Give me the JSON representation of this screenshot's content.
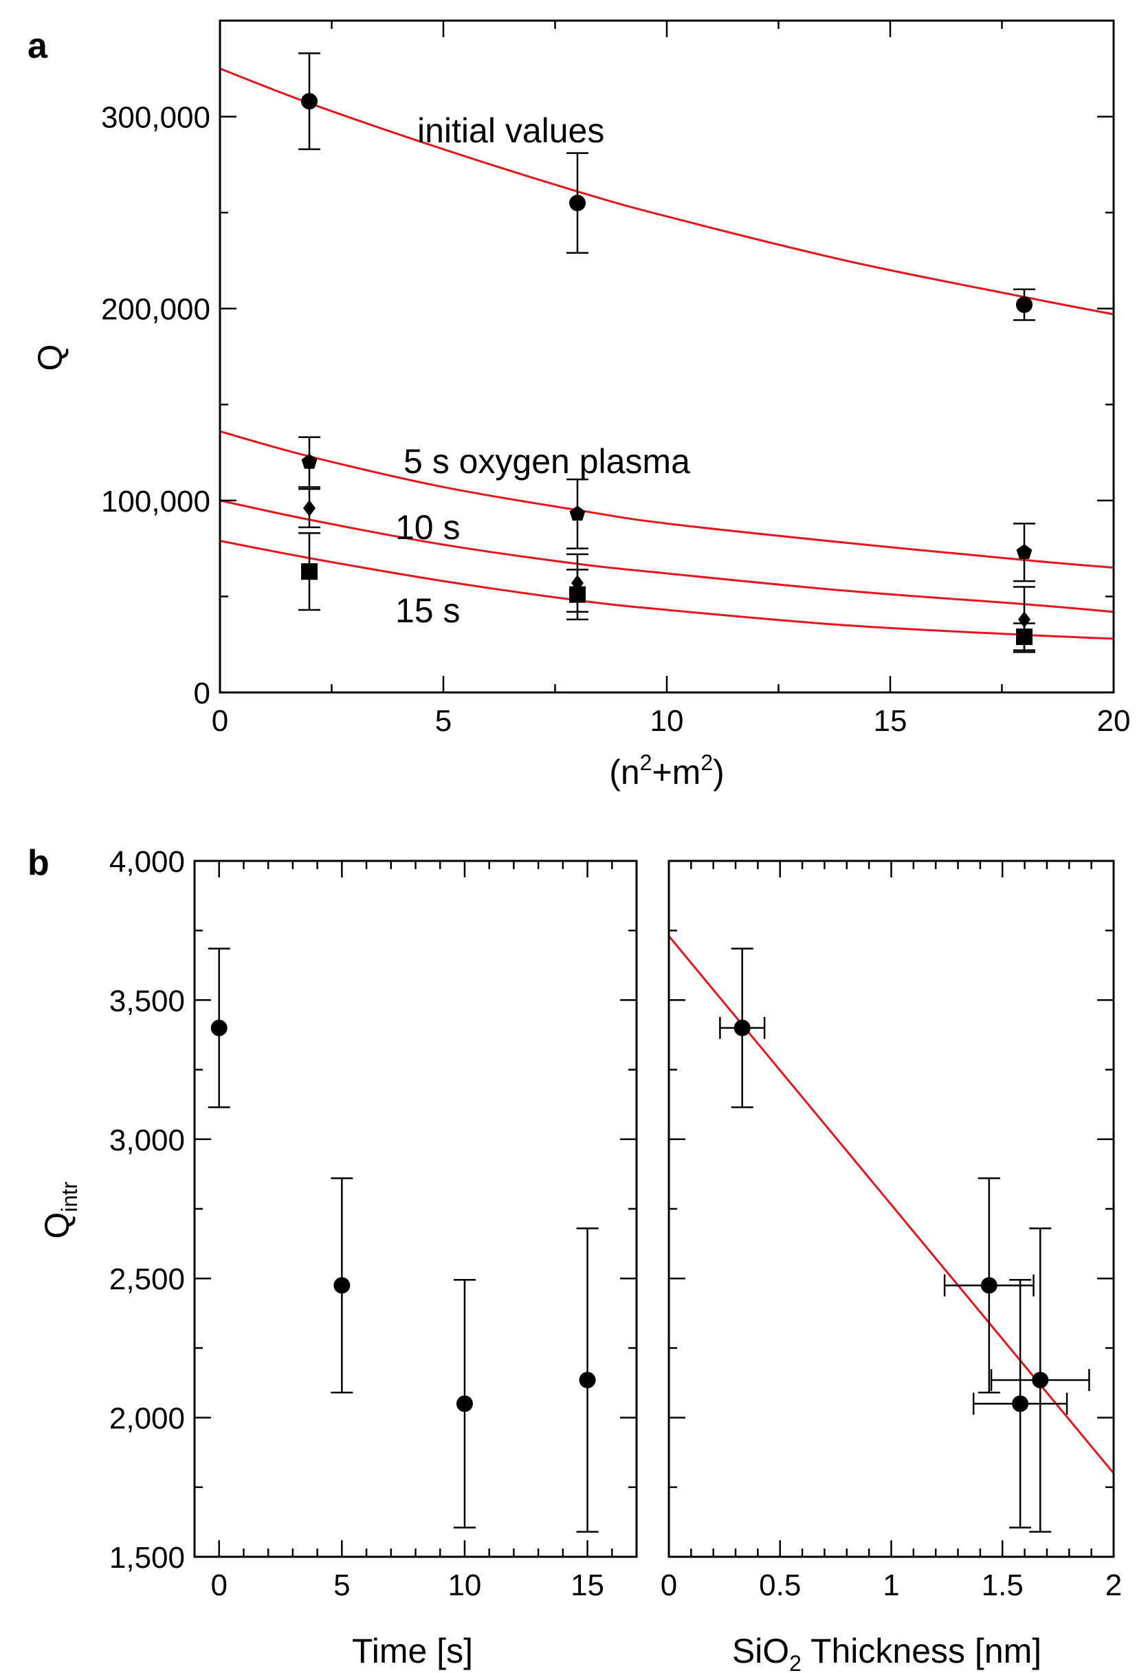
{
  "chart_data": [
    {
      "panel": "a",
      "type": "scatter",
      "xlabel": "(n²+m²)",
      "xlabel_parts": {
        "pre": "(n",
        "sup1": "2",
        "mid": "+m",
        "sup2": "2",
        "post": ")"
      },
      "ylabel": "Q",
      "xlim": [
        0,
        20
      ],
      "ylim": [
        0,
        350000
      ],
      "xticks": [
        0,
        5,
        10,
        15,
        20
      ],
      "xtick_labels": [
        "0",
        "5",
        "10",
        "15",
        "20"
      ],
      "yticks": [
        0,
        100000,
        200000,
        300000
      ],
      "ytick_labels": [
        "0",
        "100,000",
        "200,000",
        "300,000"
      ],
      "series": [
        {
          "name": "initial values",
          "marker": "circle",
          "x": [
            2,
            8,
            18
          ],
          "y": [
            308000,
            255000,
            202000
          ],
          "yerr": [
            25000,
            26000,
            8000
          ],
          "fit": {
            "type": "curve",
            "x": [
              0,
              2,
              5,
              8,
              10,
              14,
              18,
              20
            ],
            "y": [
              325000,
              307000,
              283000,
              261000,
              248000,
              225000,
              206000,
              197000
            ]
          }
        },
        {
          "name": "5 s oxygen plasma",
          "marker": "pentagon",
          "x": [
            2,
            8,
            18
          ],
          "y": [
            120000,
            93000,
            73000
          ],
          "yerr": [
            13000,
            18000,
            15000
          ],
          "fit": {
            "type": "curve",
            "x": [
              0,
              2,
              5,
              8,
              10,
              14,
              18,
              20
            ],
            "y": [
              136000,
              123000,
              107000,
              95000,
              88000,
              78000,
              69000,
              65000
            ]
          }
        },
        {
          "name": "10 s",
          "marker": "diamond",
          "x": [
            2,
            8,
            18
          ],
          "y": [
            96000,
            57000,
            38000
          ],
          "yerr": [
            10000,
            15000,
            17000
          ],
          "fit": {
            "type": "curve",
            "x": [
              0,
              2,
              5,
              8,
              10,
              14,
              18,
              20
            ],
            "y": [
              100000,
              90000,
              77000,
              67000,
              62000,
              53000,
              46000,
              42000
            ]
          }
        },
        {
          "name": "15 s",
          "marker": "square",
          "x": [
            2,
            8,
            18
          ],
          "y": [
            63000,
            51000,
            29000
          ],
          "yerr": [
            20000,
            13000,
            7000
          ],
          "fit": {
            "type": "curve",
            "x": [
              0,
              2,
              5,
              8,
              10,
              14,
              18,
              20
            ],
            "y": [
              79000,
              70000,
              58000,
              48000,
              43000,
              35000,
              30000,
              28000
            ]
          }
        }
      ],
      "annotations": [
        "initial values",
        "5 s oxygen plasma",
        "10 s",
        "15 s"
      ]
    },
    {
      "panel": "b",
      "type": "scatter",
      "xlabel": "Time [s]",
      "ylabel": "Qintr",
      "ylabel_parts": {
        "main": "Q",
        "sub": "intr"
      },
      "xlim": [
        -1,
        17
      ],
      "ylim": [
        1500,
        4000
      ],
      "xticks": [
        0,
        5,
        10,
        15
      ],
      "xtick_labels": [
        "0",
        "5",
        "10",
        "15"
      ],
      "yticks": [
        1500,
        2000,
        2500,
        3000,
        3500,
        4000
      ],
      "ytick_labels": [
        "1,500",
        "2,000",
        "2,500",
        "3,000",
        "3,500",
        "4,000"
      ],
      "series": [
        {
          "name": "Qintr vs time",
          "marker": "circle",
          "x": [
            0,
            5,
            10,
            15
          ],
          "y": [
            3400,
            2475,
            2050,
            2135
          ],
          "yerr": [
            285,
            385,
            445,
            545
          ]
        }
      ]
    },
    {
      "panel": "b-right",
      "type": "scatter",
      "xlabel": "SiO2 Thickness [nm]",
      "xlabel_parts": {
        "pre": "SiO",
        "sub": "2",
        "post": " Thickness [nm]"
      },
      "xlim": [
        0,
        2
      ],
      "ylim": [
        1500,
        4000
      ],
      "xticks": [
        0,
        0.5,
        1,
        1.5,
        2
      ],
      "xtick_labels": [
        "0",
        "0.5",
        "1",
        "1.5",
        "2"
      ],
      "series": [
        {
          "name": "Qintr vs SiO2 thickness",
          "marker": "circle",
          "x": [
            0.33,
            1.44,
            1.58,
            1.67
          ],
          "y": [
            3400,
            2475,
            2050,
            2135
          ],
          "yerr": [
            285,
            385,
            445,
            545
          ],
          "xerr": [
            0.1,
            0.2,
            0.21,
            0.22
          ],
          "fit": {
            "type": "line",
            "x": [
              0,
              2
            ],
            "y": [
              3730,
              1800
            ]
          }
        }
      ]
    }
  ],
  "labels": {
    "panel_a": "a",
    "panel_b": "b"
  }
}
